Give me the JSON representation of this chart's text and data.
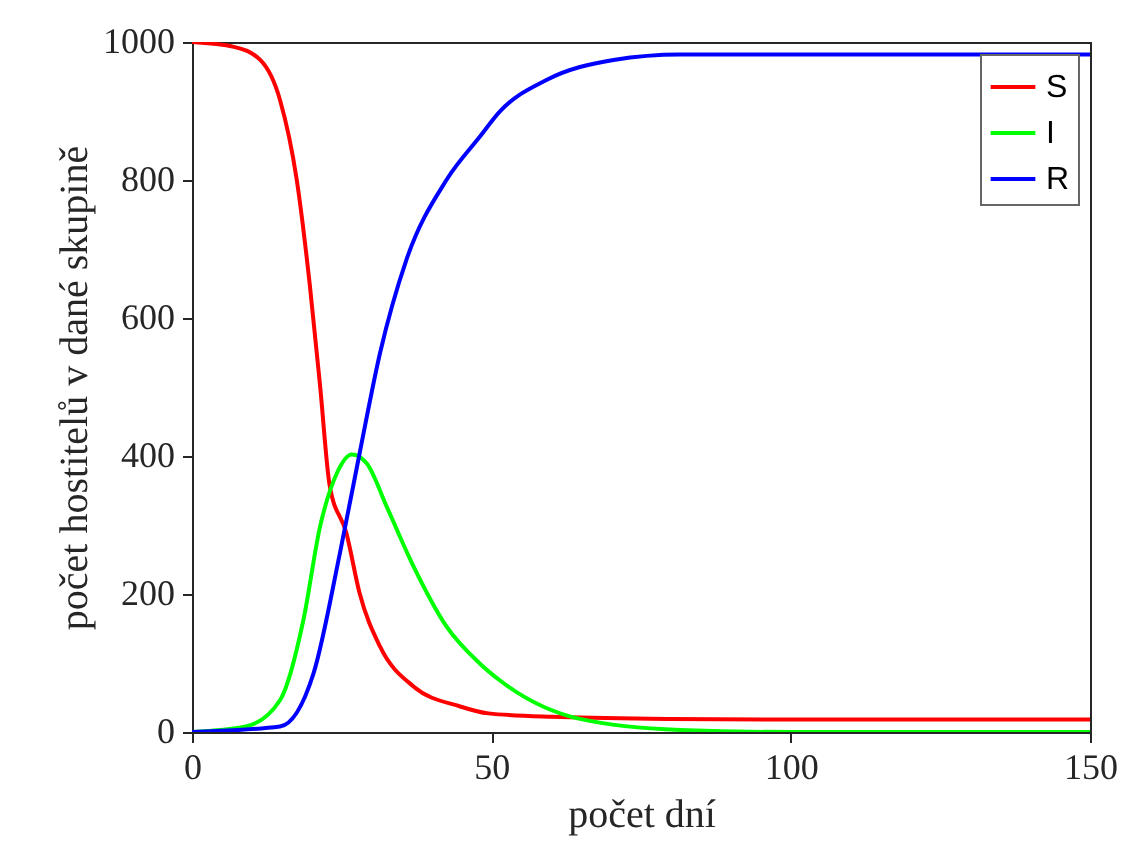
{
  "chart_data": {
    "type": "line",
    "xlabel": "počet dní",
    "ylabel": "počet hostitelů v dané skupině",
    "xlim": [
      0,
      150
    ],
    "ylim": [
      0,
      1000
    ],
    "xticks": [
      0,
      50,
      100,
      150
    ],
    "yticks": [
      0,
      200,
      400,
      600,
      800,
      1000
    ],
    "grid": false,
    "legend": "top right",
    "marker": "none",
    "line_style": "solid",
    "series": [
      {
        "name": "S",
        "color": "#ff0000",
        "x": [
          0,
          7,
          11.4,
          14.7,
          17.5,
          19.7,
          21.4,
          23,
          25.8,
          28,
          31.4,
          37,
          44.8,
          49.5,
          60,
          80,
          100,
          150
        ],
        "values": [
          1000,
          993,
          974,
          916,
          800,
          646,
          501,
          357,
          288,
          201,
          124,
          66,
          37,
          27,
          22,
          19,
          18,
          18
        ]
      },
      {
        "name": "I",
        "color": "#00ff00",
        "x": [
          0,
          9,
          14.7,
          18.6,
          21.4,
          24.2,
          26.7,
          29.2,
          32.5,
          37,
          42.5,
          48.1,
          51.4,
          64.8,
          81.5,
          100,
          150
        ],
        "values": [
          0,
          8,
          46,
          162,
          298,
          375,
          402,
          389,
          327,
          240,
          153,
          99,
          75,
          19,
          3,
          0,
          0
        ]
      },
      {
        "name": "R",
        "color": "#0000ff",
        "x": [
          0,
          14.7,
          20.3,
          24.7,
          28,
          31.4,
          35.8,
          42.5,
          48.1,
          51.4,
          59.2,
          70.4,
          81.5,
          100,
          150
        ],
        "values": [
          0,
          8,
          85,
          259,
          404,
          549,
          684,
          800,
          863,
          899,
          945,
          974,
          982,
          982,
          982
        ]
      }
    ]
  }
}
